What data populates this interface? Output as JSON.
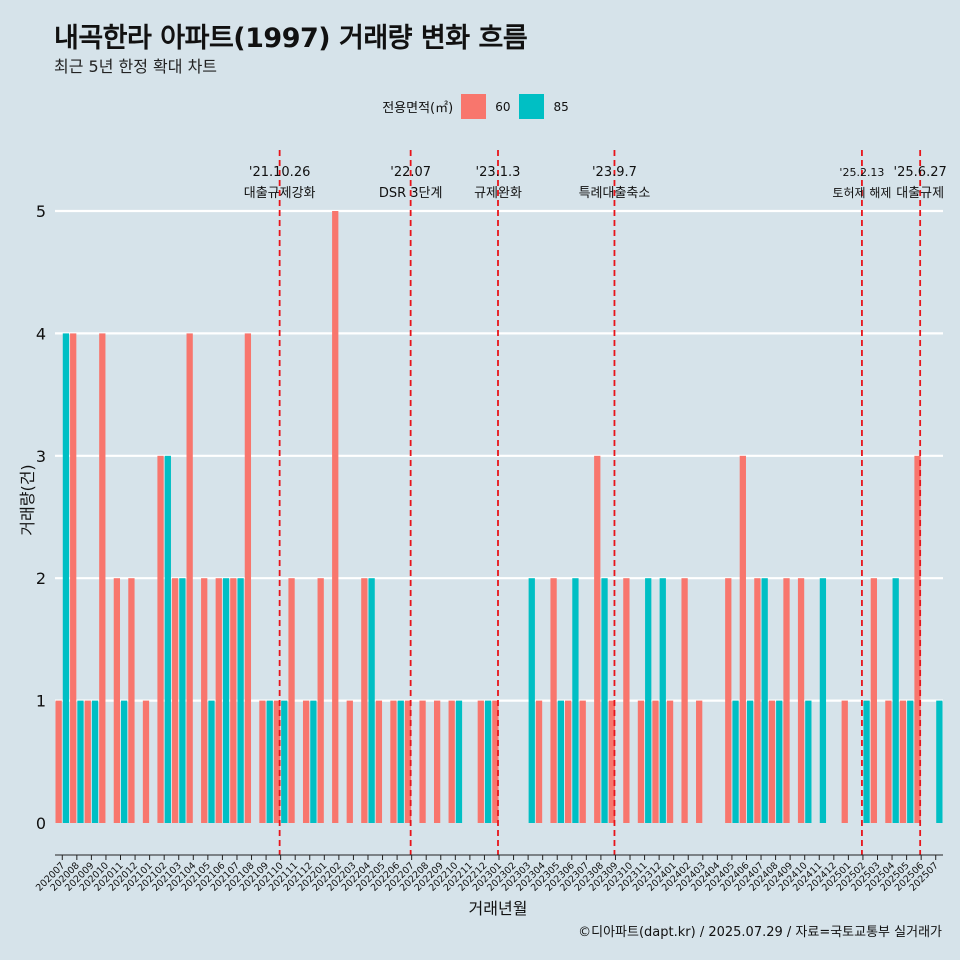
{
  "title": "내곡한라 아파트(1997) 거래량 변화 흐름",
  "subtitle": "최근 5년 한정 확대 차트",
  "caption": "©디아파트(dapt.kr) / 2025.07.29 / 자료=국토교통부 실거래가",
  "legend": {
    "title": "전용면적(㎡)",
    "items": [
      {
        "label": "60",
        "color": "#f8766d"
      },
      {
        "label": "85",
        "color": "#00bfc4"
      }
    ]
  },
  "colors": {
    "60": "#f8766d",
    "85": "#00bfc4",
    "event_line": "#e8141a",
    "background": "#d6e3ea"
  },
  "chart_data": {
    "type": "bar",
    "xlabel": "거래년월",
    "ylabel": "거래량(건)",
    "ylim": [
      0,
      5
    ],
    "yticks": [
      0,
      1,
      2,
      3,
      4,
      5
    ],
    "grid": true,
    "legend_position": "top",
    "categories": [
      "202007",
      "202008",
      "202009",
      "202010",
      "202011",
      "202012",
      "202101",
      "202102",
      "202103",
      "202104",
      "202105",
      "202106",
      "202107",
      "202108",
      "202109",
      "202110",
      "202111",
      "202112",
      "202201",
      "202202",
      "202203",
      "202204",
      "202205",
      "202206",
      "202207",
      "202208",
      "202209",
      "202210",
      "202211",
      "202212",
      "202301",
      "202302",
      "202303",
      "202304",
      "202305",
      "202306",
      "202307",
      "202308",
      "202309",
      "202310",
      "202311",
      "202312",
      "202401",
      "202402",
      "202403",
      "202404",
      "202405",
      "202406",
      "202407",
      "202408",
      "202409",
      "202410",
      "202411",
      "202412",
      "202501",
      "202502",
      "202503",
      "202504",
      "202505",
      "202506",
      "202507"
    ],
    "series": [
      {
        "name": "60",
        "values": [
          1,
          4,
          1,
          4,
          2,
          2,
          1,
          3,
          2,
          4,
          2,
          2,
          2,
          4,
          1,
          1,
          2,
          1,
          2,
          5,
          1,
          2,
          1,
          1,
          1,
          1,
          1,
          1,
          0,
          1,
          1,
          0,
          0,
          1,
          2,
          1,
          1,
          3,
          1,
          2,
          1,
          1,
          1,
          2,
          1,
          0,
          2,
          3,
          2,
          1,
          2,
          2,
          0,
          0,
          1,
          0,
          2,
          1,
          1,
          3,
          0
        ]
      },
      {
        "name": "85",
        "values": [
          4,
          1,
          1,
          0,
          1,
          0,
          0,
          3,
          2,
          0,
          1,
          2,
          2,
          0,
          1,
          1,
          0,
          1,
          0,
          0,
          0,
          2,
          0,
          1,
          0,
          0,
          0,
          1,
          0,
          1,
          0,
          0,
          2,
          0,
          1,
          2,
          0,
          2,
          0,
          0,
          2,
          2,
          0,
          0,
          0,
          0,
          1,
          1,
          2,
          1,
          0,
          1,
          2,
          0,
          0,
          1,
          0,
          2,
          1,
          0,
          1
        ]
      }
    ],
    "annotations": [
      {
        "category": "202110",
        "date": "'21.10.26",
        "label": "대출규제강화"
      },
      {
        "category": "202207",
        "date": "'22.07",
        "label": "DSR 3단계"
      },
      {
        "category": "202301",
        "date": "'23.1.3",
        "label": "규제완화"
      },
      {
        "category": "202309",
        "date": "'23.9.7",
        "label": "특례대출축소"
      },
      {
        "category": "202502",
        "date": "'25.2.13",
        "label": "토허제 해제"
      },
      {
        "category": "202506",
        "date": "'25.6.27",
        "label": "대출규제"
      }
    ]
  }
}
